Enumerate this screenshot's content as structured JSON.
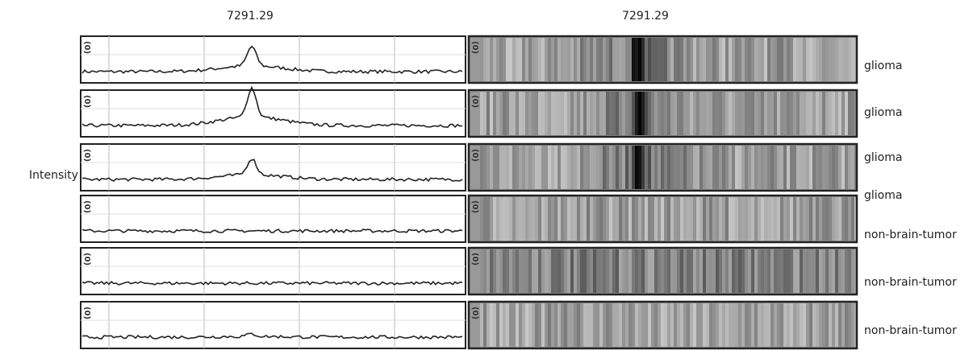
{
  "header": {
    "spectrum_title": "7291.29",
    "gel_title": "7291.29"
  },
  "y_axis_label": "Intensity",
  "panels": [
    {
      "spectrum_axis": "(0)",
      "gel_axis": "(0)"
    },
    {
      "spectrum_axis": "(0)",
      "gel_axis": "(0)"
    },
    {
      "spectrum_axis": "(0)",
      "gel_axis": "(0)"
    },
    {
      "spectrum_axis": "(0)",
      "gel_axis": "(0)"
    },
    {
      "spectrum_axis": "(0)",
      "gel_axis": "(0)"
    },
    {
      "spectrum_axis": "(0)",
      "gel_axis": "(0)"
    }
  ],
  "sample_labels": [
    "glioma",
    "glioma",
    "glioma",
    "glioma",
    "non-brain-tumor",
    "non-brain-tumor",
    "non-brain-tumor"
  ]
}
